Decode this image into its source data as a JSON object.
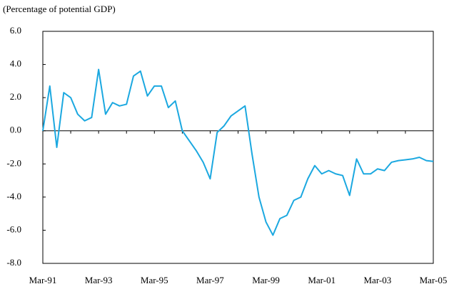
{
  "chart_data": {
    "type": "line",
    "subtitle": "(Percentage of potential GDP)",
    "categories": [
      "Mar-91",
      null,
      null,
      null,
      null,
      null,
      null,
      null,
      "Mar-93",
      null,
      null,
      null,
      null,
      null,
      null,
      null,
      "Mar-95",
      null,
      null,
      null,
      null,
      null,
      null,
      null,
      "Mar-97",
      null,
      null,
      null,
      null,
      null,
      null,
      null,
      "Mar-99",
      null,
      null,
      null,
      null,
      null,
      null,
      null,
      "Mar-01",
      null,
      null,
      null,
      null,
      null,
      null,
      null,
      "Mar-03",
      null,
      null,
      null,
      null,
      null,
      null,
      null,
      "Mar-05"
    ],
    "series": [
      {
        "color": "#1ba8e0",
        "values": [
          0.0,
          2.7,
          -1.0,
          2.3,
          2.0,
          1.0,
          0.6,
          0.8,
          3.7,
          1.0,
          1.7,
          1.5,
          1.6,
          3.3,
          3.6,
          2.1,
          2.7,
          2.7,
          1.4,
          1.8,
          0.0,
          -0.6,
          -1.2,
          -1.9,
          -2.9,
          -0.1,
          0.3,
          0.9,
          1.2,
          1.5,
          -1.4,
          -4.0,
          -5.5,
          -6.3,
          -5.3,
          -5.1,
          -4.2,
          -4.0,
          -2.9,
          -2.1,
          -2.6,
          -2.4,
          -2.6,
          -2.7,
          -3.9,
          -1.7,
          -2.6,
          -2.6,
          -2.3,
          -2.4,
          -1.9,
          -1.8,
          -1.75,
          -1.7,
          -1.6,
          -1.8,
          -1.85
        ]
      }
    ],
    "ylim": [
      -8,
      6
    ],
    "yticks": [
      {
        "value": -8,
        "label": "-8.0"
      },
      {
        "value": -6,
        "label": "-6.0"
      },
      {
        "value": -4,
        "label": "-4.0"
      },
      {
        "value": -2,
        "label": "-2.0"
      },
      {
        "value": 0,
        "label": "0.0"
      },
      {
        "value": 2,
        "label": "2.0"
      },
      {
        "value": 4,
        "label": "4.0"
      },
      {
        "value": 6,
        "label": "6.0"
      }
    ],
    "grid": false
  }
}
